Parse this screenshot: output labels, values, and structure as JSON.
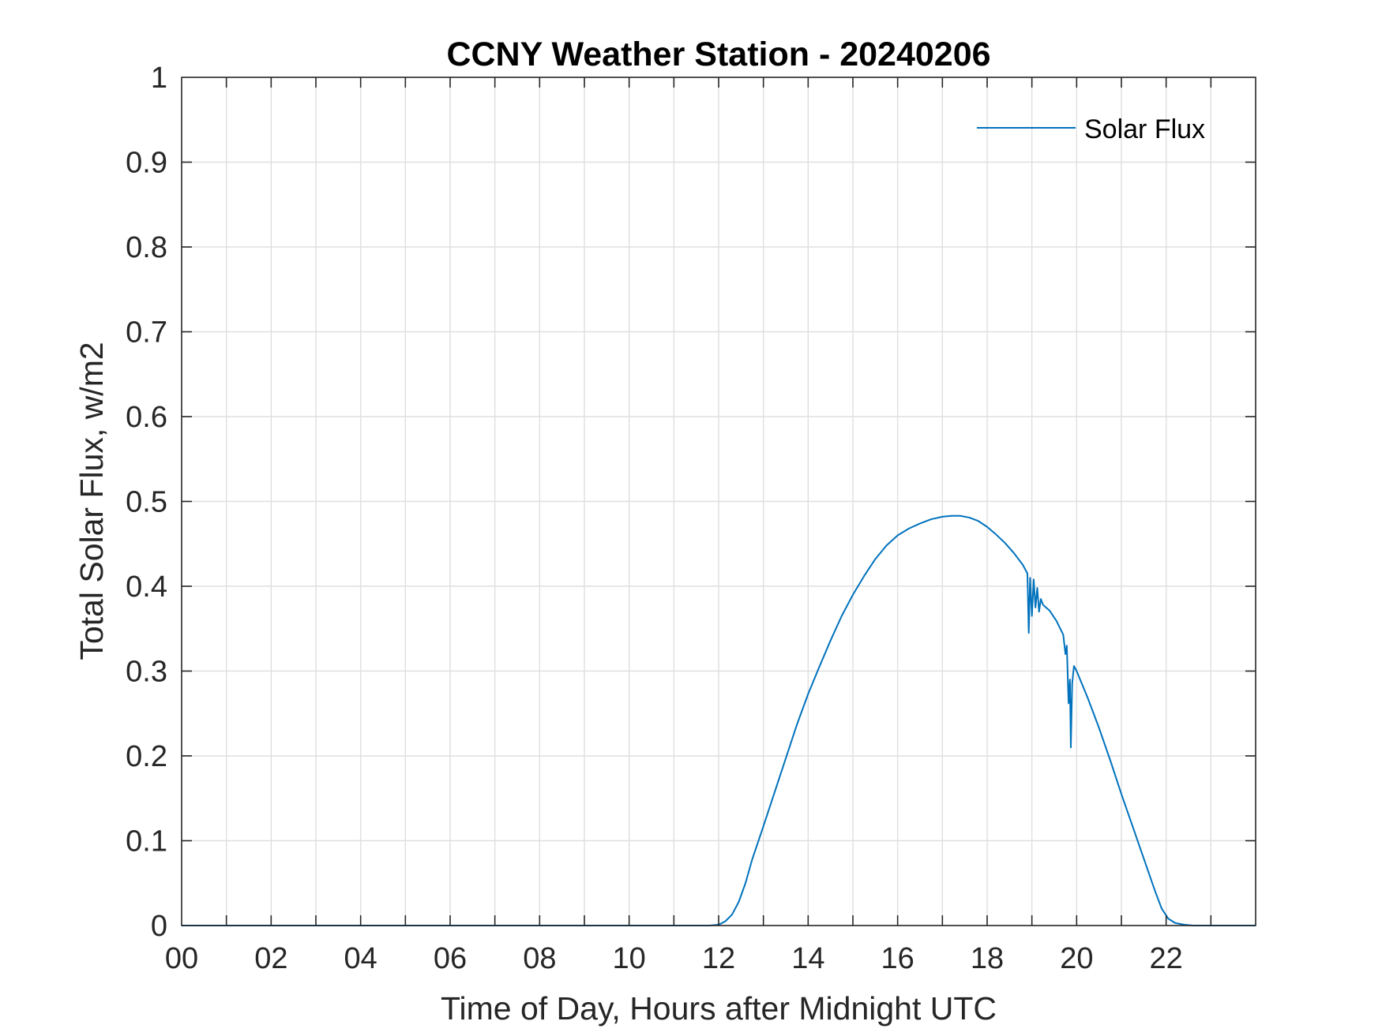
{
  "chart_data": {
    "type": "line",
    "title": "CCNY Weather Station - 20240206",
    "xlabel": "Time of Day, Hours after Midnight UTC",
    "ylabel": "Total Solar Flux, w/m2",
    "xlim": [
      0,
      24
    ],
    "ylim": [
      0,
      1
    ],
    "grid": true,
    "legend_location": "top-right",
    "x_ticks": [
      {
        "value": 0,
        "label": "00"
      },
      {
        "value": 2,
        "label": "02"
      },
      {
        "value": 4,
        "label": "04"
      },
      {
        "value": 6,
        "label": "06"
      },
      {
        "value": 8,
        "label": "08"
      },
      {
        "value": 10,
        "label": "10"
      },
      {
        "value": 12,
        "label": "12"
      },
      {
        "value": 14,
        "label": "14"
      },
      {
        "value": 16,
        "label": "16"
      },
      {
        "value": 18,
        "label": "18"
      },
      {
        "value": 20,
        "label": "20"
      },
      {
        "value": 22,
        "label": "22"
      }
    ],
    "x_minor_grid": [
      1,
      3,
      5,
      7,
      9,
      11,
      13,
      15,
      17,
      19,
      21,
      23
    ],
    "y_ticks": [
      {
        "value": 0,
        "label": "0"
      },
      {
        "value": 0.1,
        "label": "0.1"
      },
      {
        "value": 0.2,
        "label": "0.2"
      },
      {
        "value": 0.3,
        "label": "0.3"
      },
      {
        "value": 0.4,
        "label": "0.4"
      },
      {
        "value": 0.5,
        "label": "0.5"
      },
      {
        "value": 0.6,
        "label": "0.6"
      },
      {
        "value": 0.7,
        "label": "0.7"
      },
      {
        "value": 0.8,
        "label": "0.8"
      },
      {
        "value": 0.9,
        "label": "0.9"
      },
      {
        "value": 1,
        "label": "1"
      }
    ],
    "series": [
      {
        "name": "Solar Flux",
        "color": "#0072BD",
        "points": [
          [
            0.0,
            0.0
          ],
          [
            11.8,
            0.0
          ],
          [
            12.0,
            0.001
          ],
          [
            12.15,
            0.005
          ],
          [
            12.3,
            0.013
          ],
          [
            12.45,
            0.028
          ],
          [
            12.6,
            0.05
          ],
          [
            12.75,
            0.078
          ],
          [
            13.0,
            0.117
          ],
          [
            13.25,
            0.157
          ],
          [
            13.5,
            0.197
          ],
          [
            13.75,
            0.237
          ],
          [
            14.0,
            0.273
          ],
          [
            14.25,
            0.305
          ],
          [
            14.5,
            0.336
          ],
          [
            14.75,
            0.365
          ],
          [
            15.0,
            0.39
          ],
          [
            15.25,
            0.412
          ],
          [
            15.5,
            0.432
          ],
          [
            15.75,
            0.448
          ],
          [
            16.0,
            0.46
          ],
          [
            16.25,
            0.468
          ],
          [
            16.5,
            0.474
          ],
          [
            16.75,
            0.479
          ],
          [
            17.0,
            0.482
          ],
          [
            17.2,
            0.483
          ],
          [
            17.4,
            0.483
          ],
          [
            17.6,
            0.481
          ],
          [
            17.8,
            0.477
          ],
          [
            18.0,
            0.47
          ],
          [
            18.2,
            0.461
          ],
          [
            18.4,
            0.451
          ],
          [
            18.6,
            0.439
          ],
          [
            18.8,
            0.425
          ],
          [
            18.9,
            0.415
          ],
          [
            18.93,
            0.345
          ],
          [
            18.96,
            0.41
          ],
          [
            19.0,
            0.365
          ],
          [
            19.04,
            0.408
          ],
          [
            19.08,
            0.375
          ],
          [
            19.12,
            0.398
          ],
          [
            19.16,
            0.37
          ],
          [
            19.2,
            0.385
          ],
          [
            19.25,
            0.378
          ],
          [
            19.4,
            0.371
          ],
          [
            19.55,
            0.359
          ],
          [
            19.7,
            0.343
          ],
          [
            19.75,
            0.32
          ],
          [
            19.78,
            0.33
          ],
          [
            19.82,
            0.262
          ],
          [
            19.85,
            0.29
          ],
          [
            19.87,
            0.21
          ],
          [
            19.9,
            0.285
          ],
          [
            19.94,
            0.306
          ],
          [
            20.0,
            0.3
          ],
          [
            20.25,
            0.268
          ],
          [
            20.5,
            0.233
          ],
          [
            20.75,
            0.195
          ],
          [
            21.0,
            0.155
          ],
          [
            21.25,
            0.117
          ],
          [
            21.5,
            0.079
          ],
          [
            21.75,
            0.041
          ],
          [
            21.9,
            0.02
          ],
          [
            22.05,
            0.008
          ],
          [
            22.2,
            0.003
          ],
          [
            22.4,
            0.001
          ],
          [
            22.6,
            0.0
          ],
          [
            24.0,
            0.0
          ]
        ]
      }
    ]
  }
}
